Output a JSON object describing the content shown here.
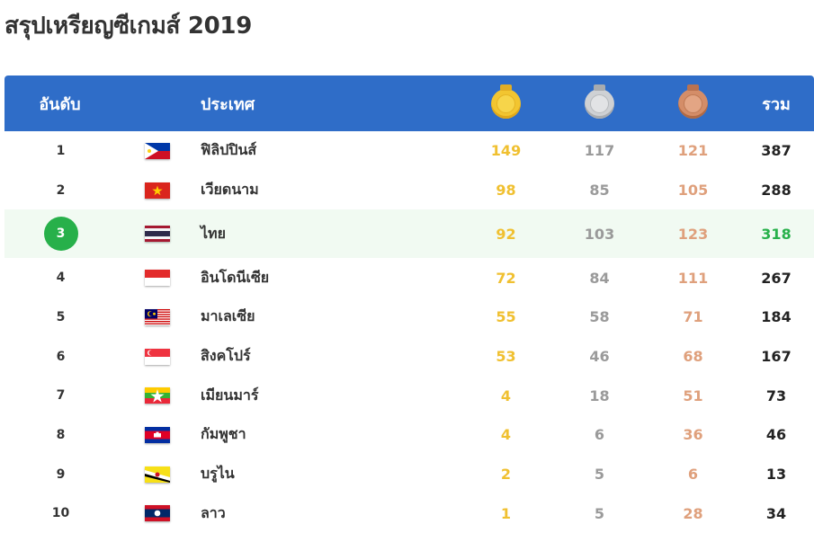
{
  "page": {
    "title": "สรุปเหรียญซีเกมส์ 2019"
  },
  "table": {
    "headers": {
      "rank": "อันดับ",
      "country": "ประเทศ",
      "gold_icon": "gold-medal-icon",
      "silver_icon": "silver-medal-icon",
      "bronze_icon": "bronze-medal-icon",
      "total": "รวม"
    },
    "highlight_color": "#27b04a",
    "rows": [
      {
        "rank": "1",
        "flag": "philippines-flag-icon",
        "country": "ฟิลิปปินส์",
        "gold": "149",
        "silver": "117",
        "bronze": "121",
        "total": "387"
      },
      {
        "rank": "2",
        "flag": "vietnam-flag-icon",
        "country": "เวียดนาม",
        "gold": "98",
        "silver": "85",
        "bronze": "105",
        "total": "288"
      },
      {
        "rank": "3",
        "flag": "thailand-flag-icon",
        "country": "ไทย",
        "gold": "92",
        "silver": "103",
        "bronze": "123",
        "total": "318"
      },
      {
        "rank": "4",
        "flag": "indonesia-flag-icon",
        "country": "อินโดนีเซีย",
        "gold": "72",
        "silver": "84",
        "bronze": "111",
        "total": "267"
      },
      {
        "rank": "5",
        "flag": "malaysia-flag-icon",
        "country": "มาเลเซีย",
        "gold": "55",
        "silver": "58",
        "bronze": "71",
        "total": "184"
      },
      {
        "rank": "6",
        "flag": "singapore-flag-icon",
        "country": "สิงคโปร์",
        "gold": "53",
        "silver": "46",
        "bronze": "68",
        "total": "167"
      },
      {
        "rank": "7",
        "flag": "myanmar-flag-icon",
        "country": "เมียนมาร์",
        "gold": "4",
        "silver": "18",
        "bronze": "51",
        "total": "73"
      },
      {
        "rank": "8",
        "flag": "cambodia-flag-icon",
        "country": "กัมพูชา",
        "gold": "4",
        "silver": "6",
        "bronze": "36",
        "total": "46"
      },
      {
        "rank": "9",
        "flag": "brunei-flag-icon",
        "country": "บรูไน",
        "gold": "2",
        "silver": "5",
        "bronze": "6",
        "total": "13"
      },
      {
        "rank": "10",
        "flag": "laos-flag-icon",
        "country": "ลาว",
        "gold": "1",
        "silver": "5",
        "bronze": "28",
        "total": "34"
      }
    ]
  }
}
